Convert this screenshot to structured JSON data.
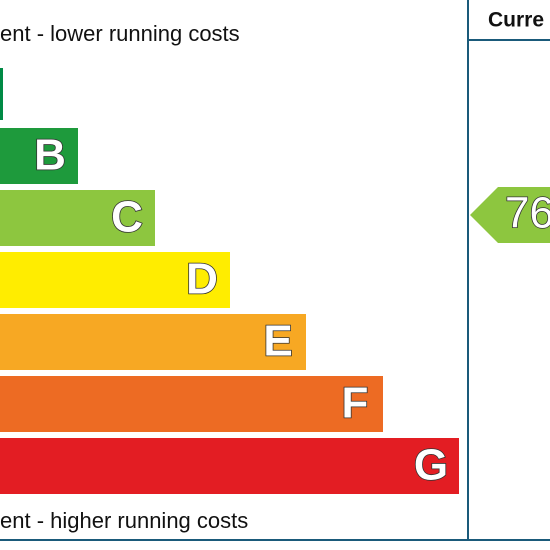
{
  "header": {
    "top_note": "ent - lower running costs",
    "bottom_note": "ent - higher running costs",
    "current_heading": "Curre"
  },
  "bands": [
    {
      "letter": "B"
    },
    {
      "letter": "C"
    },
    {
      "letter": "D"
    },
    {
      "letter": "E"
    },
    {
      "letter": "F"
    },
    {
      "letter": "G"
    }
  ],
  "current_rating": {
    "value": 76
  }
}
